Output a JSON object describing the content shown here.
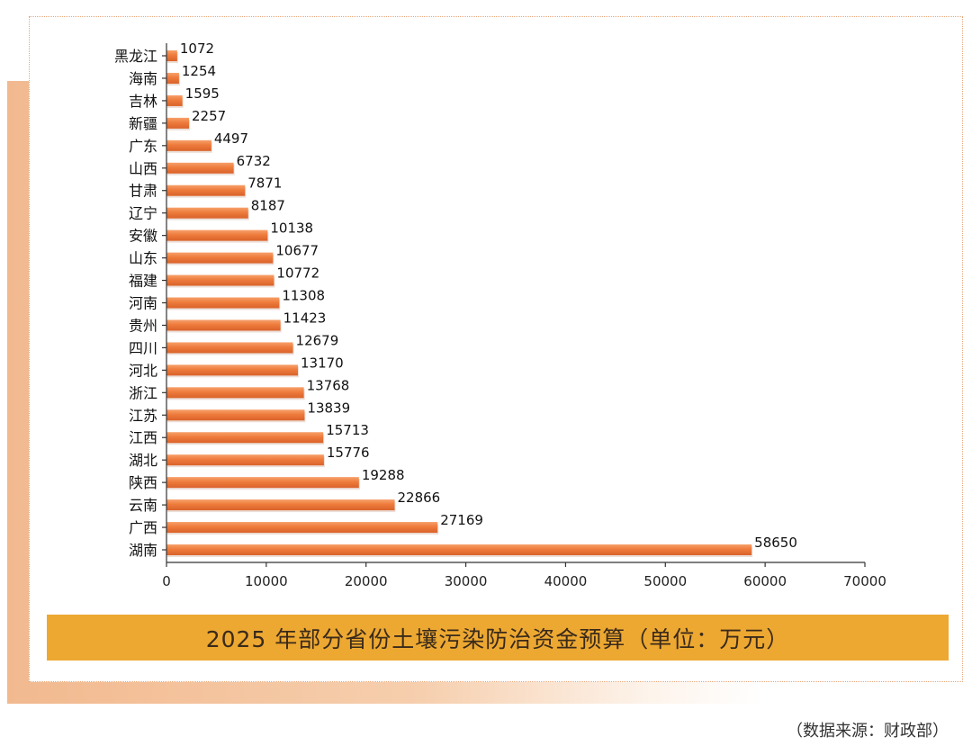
{
  "chart_data": {
    "type": "bar",
    "orientation": "horizontal",
    "title": "2025 年部分省份土壤污染防治资金预算（单位：万元）",
    "source": "（数据来源：财政部）",
    "categories": [
      "黑龙江",
      "海南",
      "吉林",
      "新疆",
      "广东",
      "山西",
      "甘肃",
      "辽宁",
      "安徽",
      "山东",
      "福建",
      "河南",
      "贵州",
      "四川",
      "河北",
      "浙江",
      "江苏",
      "江西",
      "湖北",
      "陕西",
      "云南",
      "广西",
      "湖南"
    ],
    "values": [
      1072,
      1254,
      1595,
      2257,
      4497,
      6732,
      7871,
      8187,
      10138,
      10677,
      10772,
      11308,
      11423,
      12679,
      13170,
      13768,
      13839,
      15713,
      15776,
      19288,
      22866,
      27169,
      58650
    ],
    "value_labels": [
      "1072",
      "1254",
      "1595",
      "2257",
      "4497",
      "6732",
      "7871",
      "8187",
      "10138",
      "10677",
      "10772",
      "11308",
      "11423",
      "12679",
      "13170",
      "13768",
      "13839",
      "15713",
      "15776",
      "19288",
      "22866",
      "27169",
      "58650"
    ],
    "xlim": [
      0,
      70000
    ],
    "xticks": [
      0,
      10000,
      20000,
      30000,
      40000,
      50000,
      60000,
      70000
    ],
    "xtick_labels": [
      "0",
      "10000",
      "20000",
      "30000",
      "40000",
      "50000",
      "60000",
      "70000"
    ],
    "xlabel": "",
    "ylabel": "",
    "grid": false,
    "bar_color": "#ee7b3c"
  }
}
